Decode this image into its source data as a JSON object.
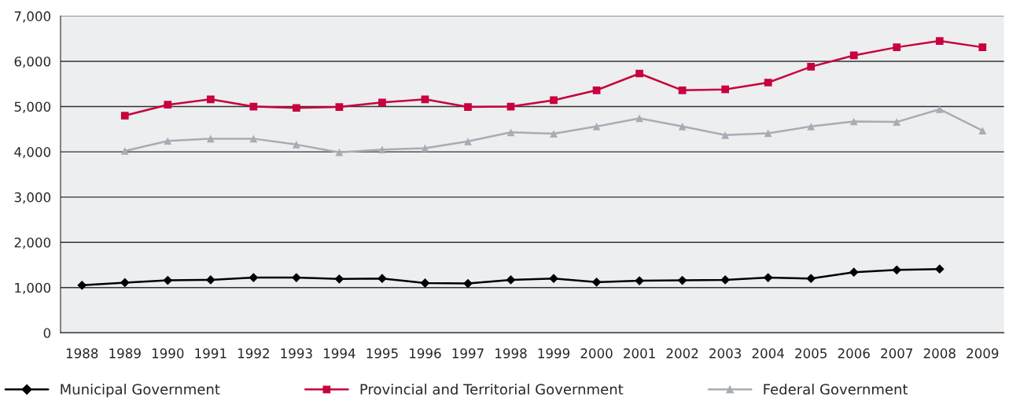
{
  "chart_data": {
    "type": "line",
    "categories": [
      "1988",
      "1989",
      "1990",
      "1991",
      "1992",
      "1993",
      "1994",
      "1995",
      "1996",
      "1997",
      "1998",
      "1999",
      "2000",
      "2001",
      "2002",
      "2003",
      "2004",
      "2005",
      "2006",
      "2007",
      "2008",
      "2009"
    ],
    "series": [
      {
        "name": "Municipal Government",
        "color": "#000000",
        "marker": "diamond",
        "values": [
          1050,
          1110,
          1160,
          1170,
          1220,
          1220,
          1190,
          1200,
          1100,
          1090,
          1170,
          1200,
          1120,
          1150,
          1160,
          1170,
          1220,
          1200,
          1340,
          1390,
          1410,
          null
        ]
      },
      {
        "name": "Provincial and Territorial Government",
        "color": "#c8003c",
        "marker": "square",
        "values": [
          null,
          4800,
          5040,
          5160,
          5000,
          4970,
          4990,
          5090,
          5160,
          4990,
          5000,
          5140,
          5360,
          5730,
          5360,
          5380,
          5530,
          5880,
          6130,
          6310,
          6450,
          6310
        ]
      },
      {
        "name": "Federal Government",
        "color": "#a7adb5",
        "marker": "triangle",
        "values": [
          null,
          4020,
          4240,
          4290,
          4290,
          4160,
          3990,
          4050,
          4080,
          4230,
          4430,
          4400,
          4560,
          4740,
          4560,
          4370,
          4410,
          4560,
          4670,
          4660,
          4940,
          4470
        ]
      }
    ],
    "ylim": [
      0,
      7000
    ],
    "yticks": [
      {
        "value": 0,
        "label": "0"
      },
      {
        "value": 1000,
        "label": "1,000"
      },
      {
        "value": 2000,
        "label": "2,000"
      },
      {
        "value": 3000,
        "label": "3,000"
      },
      {
        "value": 4000,
        "label": "4,000"
      },
      {
        "value": 5000,
        "label": "5,000"
      },
      {
        "value": 6000,
        "label": "6,000"
      },
      {
        "value": 7000,
        "label": "7,000"
      }
    ],
    "grid": "y",
    "legend": "bottom"
  }
}
